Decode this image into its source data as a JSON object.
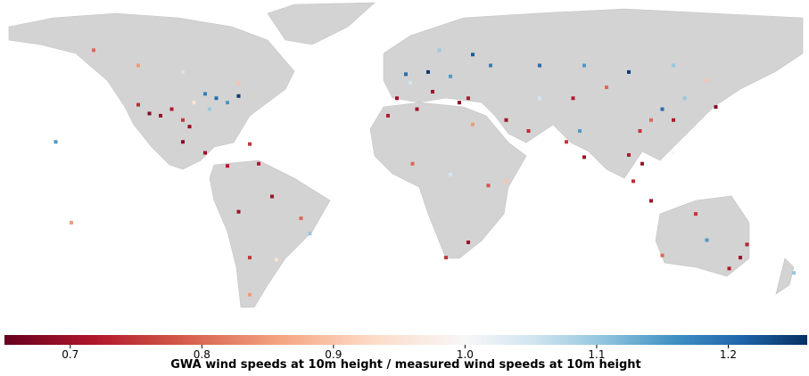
{
  "chart_data": {
    "type": "map",
    "colorbar_label": "GWA wind speeds at 10m height / measured wind speeds at 10m height",
    "clim": [
      0.65,
      1.26
    ],
    "center": 1.0,
    "colormap": "RdBu",
    "cticks": [
      0.7,
      0.8,
      0.9,
      {
        "value": 1.0,
        "label": "1.0"
      },
      1.1,
      1.2
    ],
    "lon": [
      -115,
      -110,
      -105,
      -100,
      -97,
      -120,
      -85,
      -80,
      -75,
      -90,
      -95,
      -88,
      -120,
      -100,
      -75,
      -140,
      -100,
      -90,
      -80,
      -70,
      -60,
      -47,
      -43,
      -58,
      -70,
      -75,
      -66,
      -70,
      0,
      10,
      20,
      2,
      -4,
      12,
      24,
      30,
      15,
      38,
      28,
      5,
      -8,
      30,
      3,
      37,
      28,
      18,
      45,
      20,
      45,
      55,
      60,
      60,
      80,
      100,
      120,
      135,
      90,
      75,
      78,
      80,
      72,
      115,
      110,
      120,
      105,
      125,
      139,
      100,
      106,
      120,
      110,
      102,
      150,
      145,
      115,
      135,
      130,
      153,
      174,
      -157,
      -150
    ],
    "lat": [
      33,
      32,
      35,
      30,
      27,
      37,
      40,
      38,
      41,
      42,
      38,
      35,
      55,
      52,
      47,
      62,
      20,
      15,
      9,
      19,
      -5,
      -15,
      -22,
      -34,
      -33,
      -12,
      10,
      -50,
      51,
      52,
      50,
      47,
      40,
      43,
      38,
      60,
      62,
      55,
      40,
      35,
      32,
      28,
      10,
      0,
      -26,
      -33,
      2,
      5,
      30,
      25,
      40,
      55,
      55,
      52,
      55,
      48,
      45,
      40,
      25,
      13,
      20,
      35,
      30,
      30,
      25,
      40,
      36,
      14,
      10,
      15,
      -7,
      2,
      -33,
      -38,
      -32,
      -25,
      -13,
      -27,
      -40,
      20,
      -17
    ],
    "values": [
      0.68,
      0.7,
      0.72,
      0.75,
      0.69,
      0.74,
      1.2,
      1.15,
      1.25,
      1.18,
      0.95,
      1.1,
      0.85,
      1.05,
      0.9,
      0.8,
      0.68,
      0.7,
      0.72,
      0.75,
      0.7,
      0.8,
      1.1,
      0.95,
      0.75,
      0.7,
      0.72,
      0.85,
      1.2,
      1.25,
      1.15,
      1.05,
      0.7,
      0.7,
      0.68,
      1.22,
      1.1,
      1.18,
      0.72,
      0.7,
      0.72,
      0.85,
      0.8,
      0.78,
      0.7,
      0.75,
      0.9,
      1.05,
      0.7,
      0.74,
      1.05,
      1.2,
      1.15,
      1.25,
      1.1,
      0.9,
      0.8,
      0.72,
      1.15,
      0.7,
      0.75,
      1.2,
      0.8,
      0.72,
      0.75,
      1.1,
      0.68,
      0.72,
      0.7,
      1.0,
      0.7,
      0.74,
      0.7,
      0.72,
      0.8,
      1.15,
      0.75,
      0.73,
      1.1,
      1.15,
      0.85
    ]
  }
}
